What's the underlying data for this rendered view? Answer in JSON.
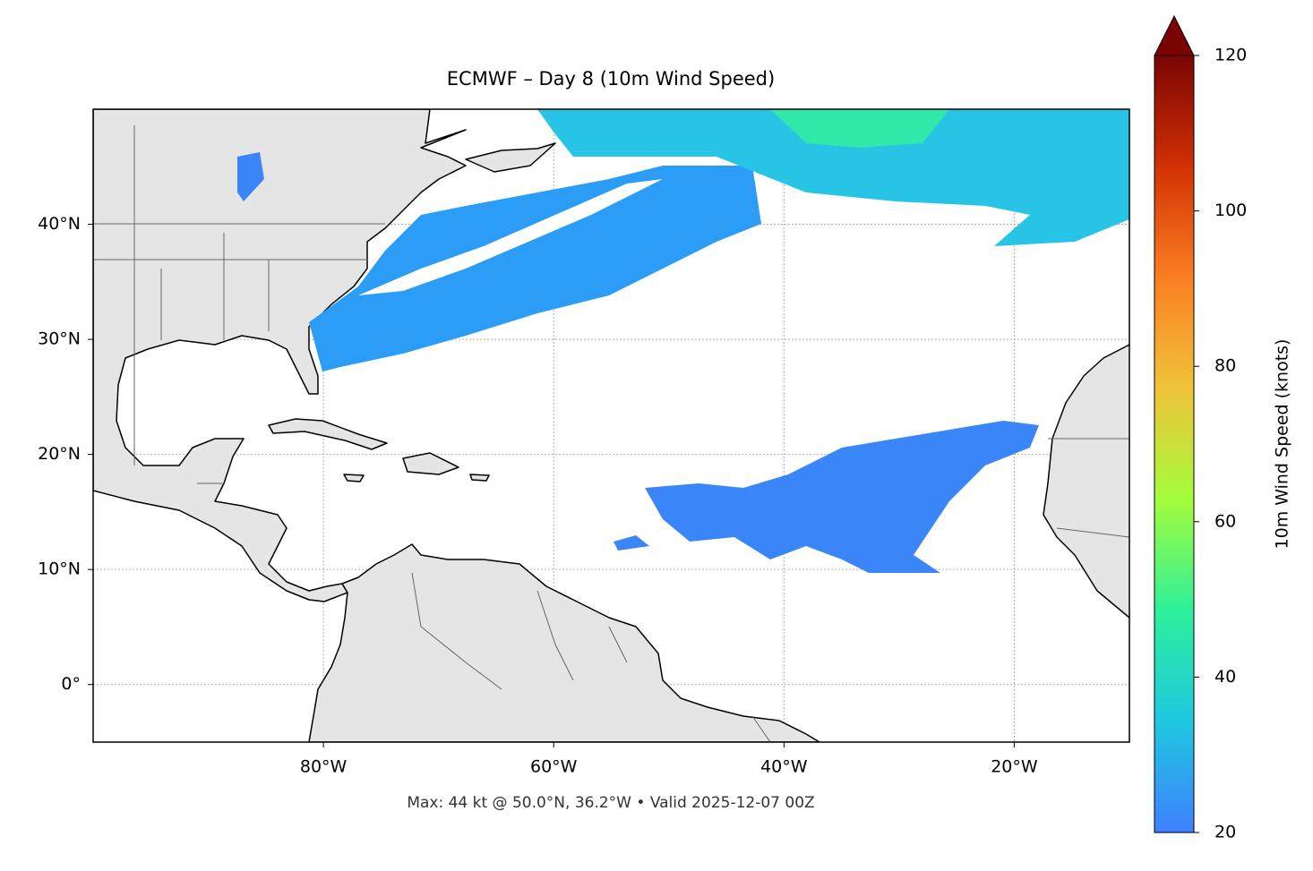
{
  "chart_data": {
    "type": "map",
    "title": "ECMWF – Day 8 (10m Wind Speed)",
    "annotation": "Max: 44 kt @ 50.0°N, 36.2°W • Valid 2025-12-07 00Z",
    "xlim": [
      -100,
      -10
    ],
    "ylim": [
      -5,
      50
    ],
    "xticks": [
      {
        "value": -80,
        "label": "80°W"
      },
      {
        "value": -60,
        "label": "60°W"
      },
      {
        "value": -40,
        "label": "40°W"
      },
      {
        "value": -20,
        "label": "20°W"
      }
    ],
    "yticks": [
      {
        "value": 0,
        "label": "0°"
      },
      {
        "value": 10,
        "label": "10°N"
      },
      {
        "value": 20,
        "label": "20°N"
      },
      {
        "value": 30,
        "label": "30°N"
      },
      {
        "value": 40,
        "label": "40°N"
      }
    ],
    "grid": true,
    "colorbar": {
      "label": "10m Wind Speed (knots)",
      "lim": [
        20,
        120
      ],
      "ticks": [
        20,
        40,
        60,
        80,
        100,
        120
      ],
      "colors": [
        "#4080ff",
        "#1ec8e0",
        "#2ef09a",
        "#a4fc3c",
        "#f0c33a",
        "#fb7e21",
        "#d23105",
        "#7a0403"
      ]
    }
  }
}
